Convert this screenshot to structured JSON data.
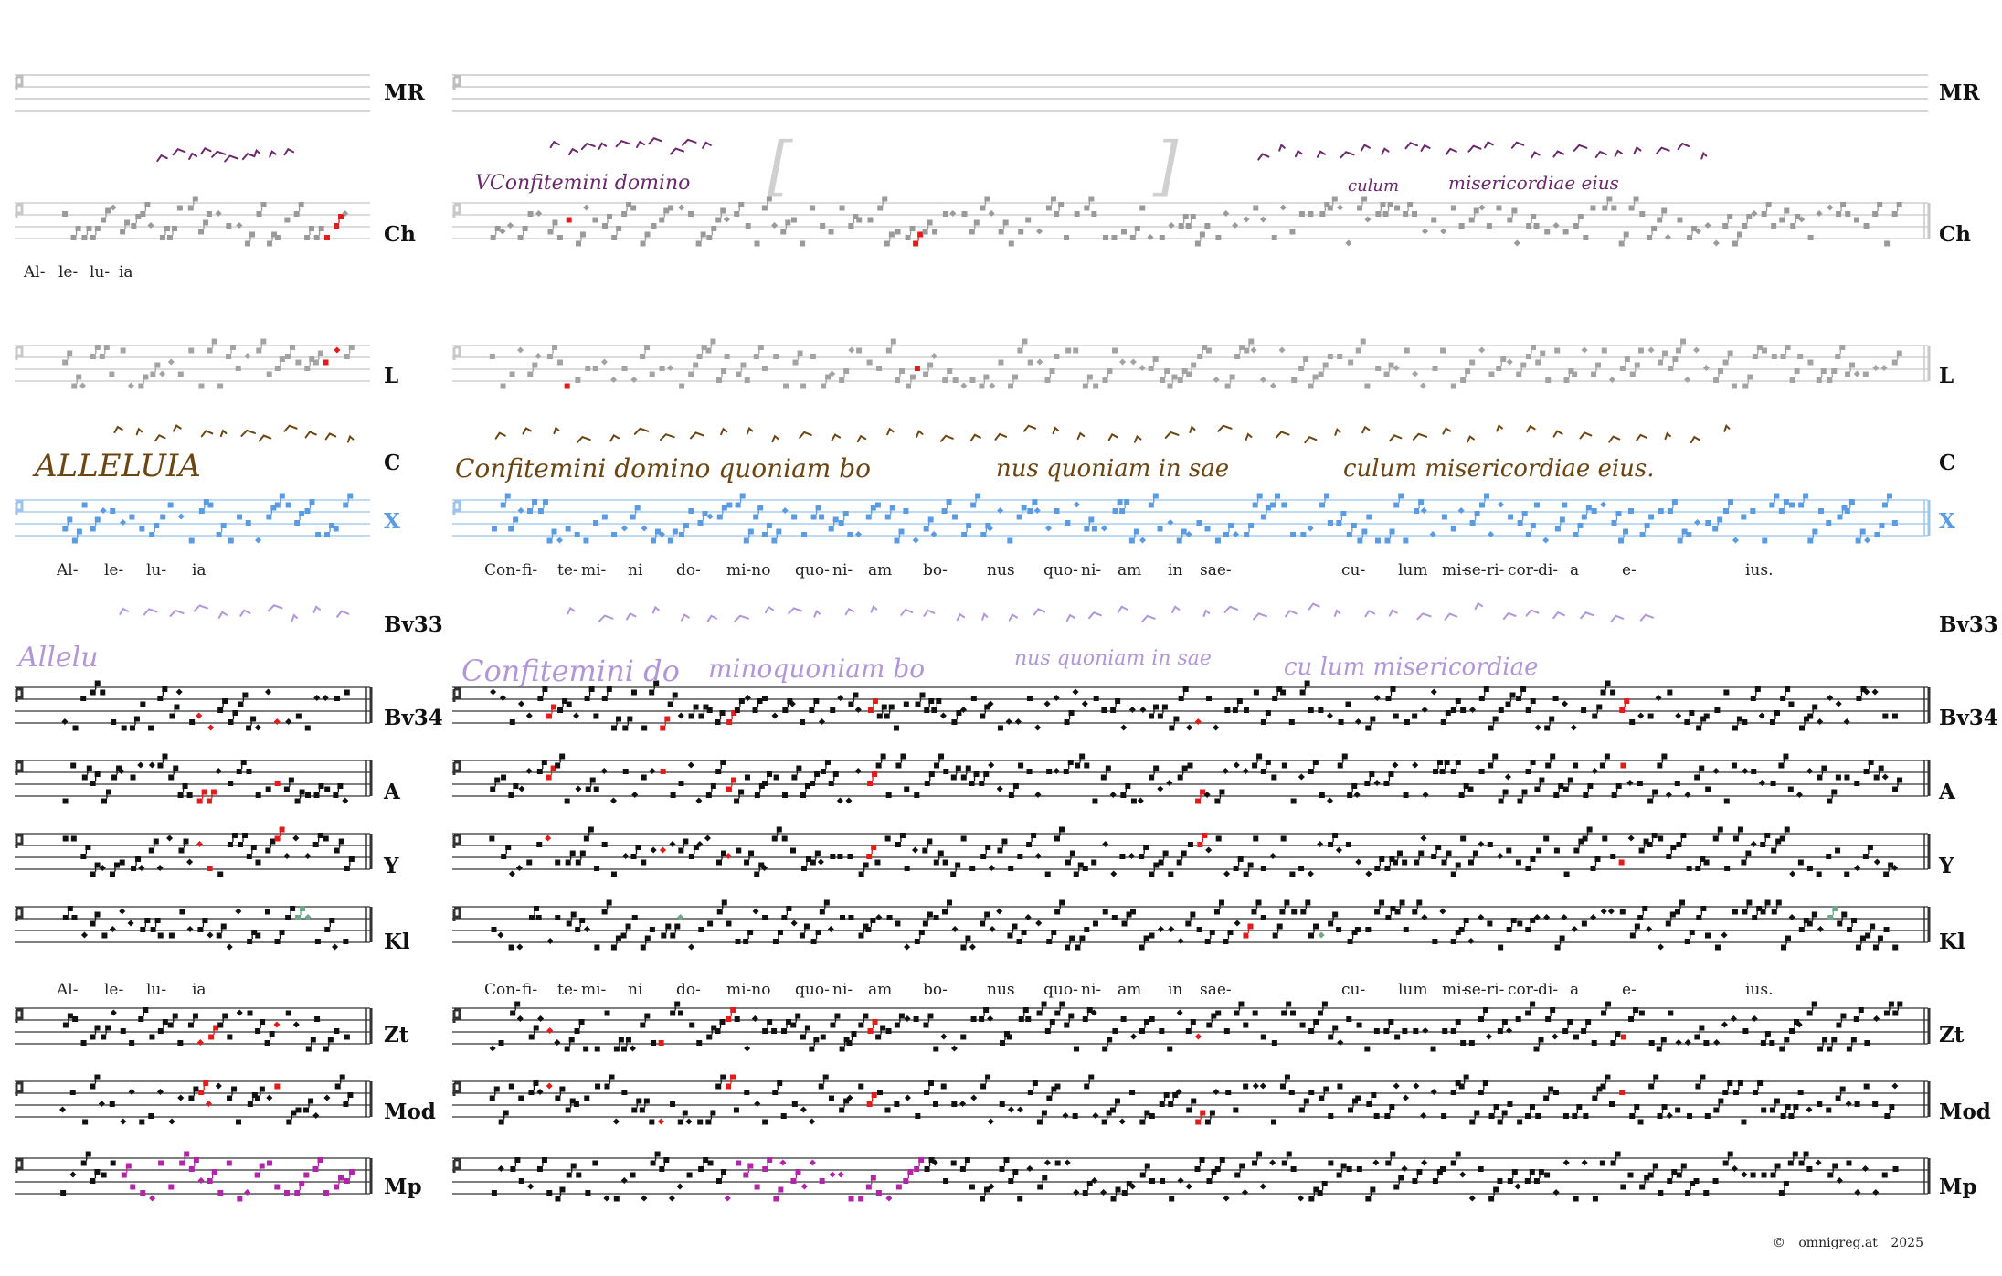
{
  "document": {
    "footer": {
      "copyright": "©",
      "site": "omnigreg.at",
      "year": "2025"
    }
  },
  "sources": [
    {
      "siglum": "MR",
      "staff_color": "#bdbdbd",
      "note_color": "#9e9e9e",
      "empty": true
    },
    {
      "siglum": "Ch",
      "staff_color": "#c8c8c8",
      "note_color": "#9a9a9a",
      "neume_color": "#6a2a6a",
      "ms_text": [
        "VConfitemini domino",
        "culum",
        "misericordiae eius"
      ],
      "brackets": [
        "[",
        "]"
      ]
    },
    {
      "siglum": "L",
      "staff_color": "#c8c8c8",
      "note_color": "#a3a3a3"
    },
    {
      "siglum": "C",
      "ms_color": "#6b4512",
      "neume_color": "#6b4512",
      "ms_text": [
        "ALLELUIA",
        "Confitemini domino quoniam bo",
        "nus quoniam in sae",
        "culum misericordiae eius."
      ]
    },
    {
      "siglum": "X",
      "staff_color": "#9cc4ee",
      "note_color": "#5b9be0",
      "siglum_color": "#5b9be0"
    },
    {
      "siglum": "Bv33",
      "ms_color": "#b196d8",
      "ms_text": [
        "Allelu",
        "Confitemini do",
        "minoquoniam bo",
        "nus quoniam in sae",
        "cu lum misericordiae"
      ]
    },
    {
      "siglum": "Bv34",
      "staff_color": "#333333",
      "note_color": "#111111"
    },
    {
      "siglum": "A",
      "staff_color": "#333333",
      "note_color": "#111111"
    },
    {
      "siglum": "Y",
      "staff_color": "#333333",
      "note_color": "#111111"
    },
    {
      "siglum": "Kl",
      "staff_color": "#333333",
      "note_color": "#111111"
    },
    {
      "siglum": "Zt",
      "staff_color": "#333333",
      "note_color": "#111111"
    },
    {
      "siglum": "Mod",
      "staff_color": "#333333",
      "note_color": "#111111"
    },
    {
      "siglum": "Mp",
      "staff_color": "#333333",
      "note_color": "#111111",
      "variant_color": "#b026a8"
    }
  ],
  "lyrics": {
    "alleluia_short": [
      "Al-",
      "le-",
      "lu-",
      "ia"
    ],
    "verse": [
      "Con-",
      "fi-",
      "te-",
      "mi-",
      "ni",
      "do-",
      "mi-no",
      "quo-",
      "ni-",
      "am",
      "bo-",
      "nus",
      "quo-",
      "ni-",
      "am",
      "in",
      "sae-",
      "cu-",
      "lum",
      "mi-",
      "se-",
      "ri-",
      "cor-",
      "di-",
      "a",
      "e-",
      "ius."
    ]
  },
  "colors": {
    "variant_red": "#e21b1b",
    "variant_green": "#6fa887",
    "variant_magenta": "#b026a8"
  }
}
